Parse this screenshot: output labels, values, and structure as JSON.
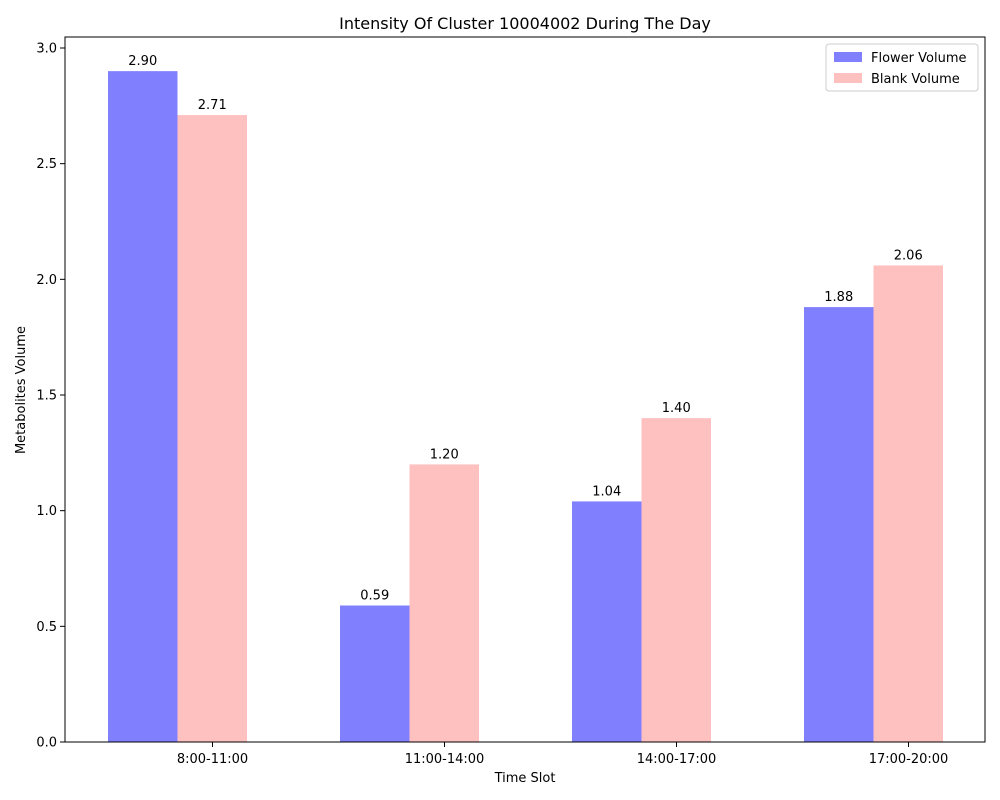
{
  "chart_data": {
    "type": "bar",
    "title": "Intensity Of Cluster 10004002 During The Day",
    "xlabel": "Time Slot",
    "ylabel": "Metabolites Volume",
    "categories": [
      "8:00-11:00",
      "11:00-14:00",
      "14:00-17:00",
      "17:00-20:00"
    ],
    "series": [
      {
        "name": "Flower Volume",
        "color": "#8080ff",
        "values": [
          2.9,
          0.59,
          1.04,
          1.88
        ],
        "labels": [
          "2.90",
          "0.59",
          "1.04",
          "1.88"
        ]
      },
      {
        "name": "Blank Volume",
        "color": "#ffc0c0",
        "values": [
          2.71,
          1.2,
          1.4,
          2.06
        ],
        "labels": [
          "2.71",
          "1.20",
          "1.40",
          "2.06"
        ]
      }
    ],
    "ylim": [
      0,
      3.0
    ],
    "yticks": [
      0.0,
      0.5,
      1.0,
      1.5,
      2.0,
      2.5,
      3.0
    ],
    "ytick_labels": [
      "0.0",
      "0.5",
      "1.0",
      "1.5",
      "2.0",
      "2.5",
      "3.0"
    ],
    "grid": false,
    "legend_position": "top-right"
  }
}
